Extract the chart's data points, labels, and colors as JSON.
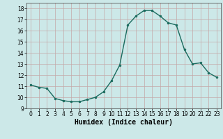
{
  "x": [
    0,
    1,
    2,
    3,
    4,
    5,
    6,
    7,
    8,
    9,
    10,
    11,
    12,
    13,
    14,
    15,
    16,
    17,
    18,
    19,
    20,
    21,
    22,
    23
  ],
  "y": [
    11.1,
    10.9,
    10.8,
    9.9,
    9.7,
    9.6,
    9.6,
    9.8,
    10.0,
    10.5,
    11.5,
    12.9,
    16.5,
    17.3,
    17.8,
    17.8,
    17.3,
    16.7,
    16.5,
    14.3,
    13.0,
    13.1,
    12.2,
    11.8
  ],
  "line_color": "#1a6b5e",
  "marker": "o",
  "marker_size": 2,
  "bg_color": "#cce8e8",
  "grid_color_v": "#c4a8a8",
  "grid_color_h": "#c4a8a8",
  "xlabel": "Humidex (Indice chaleur)",
  "xlim": [
    -0.5,
    23.5
  ],
  "ylim": [
    9,
    18.5
  ],
  "yticks": [
    9,
    10,
    11,
    12,
    13,
    14,
    15,
    16,
    17,
    18
  ],
  "xticks": [
    0,
    1,
    2,
    3,
    4,
    5,
    6,
    7,
    8,
    9,
    10,
    11,
    12,
    13,
    14,
    15,
    16,
    17,
    18,
    19,
    20,
    21,
    22,
    23
  ],
  "tick_font_size": 5.5,
  "label_font_size": 7,
  "line_width": 1.0
}
